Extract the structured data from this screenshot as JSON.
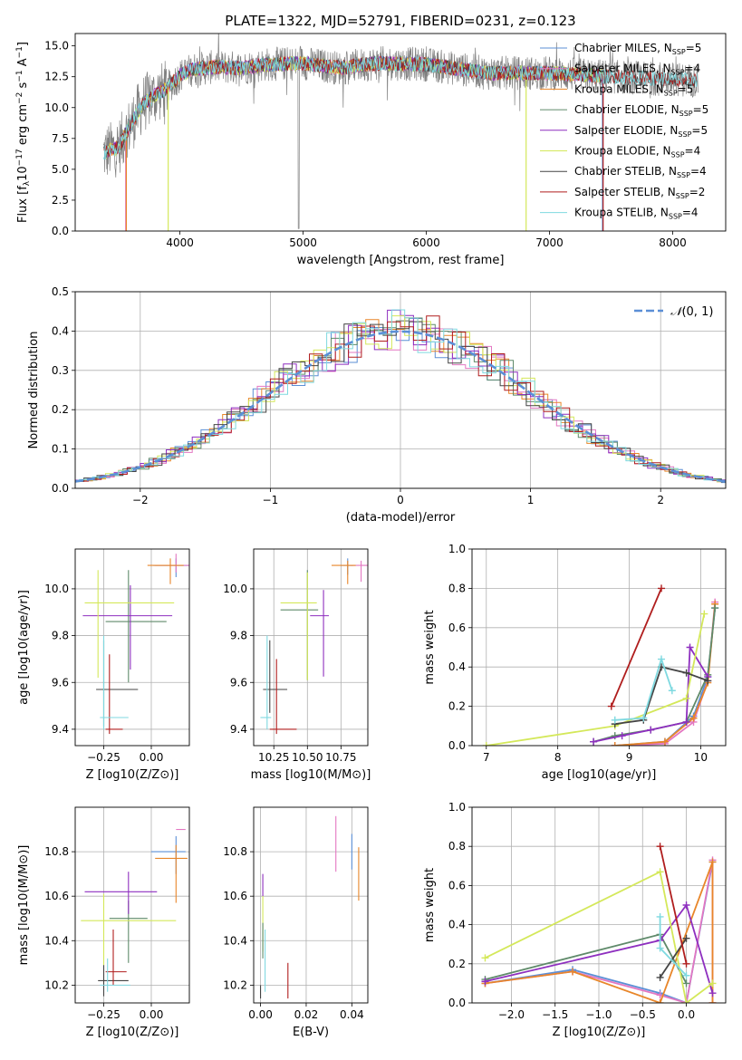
{
  "figure_title": "PLATE=1322, MJD=52791, FIBERID=0231, z=0.123",
  "colors": {
    "Chabrier MILES": "#5b8fd6",
    "Salpeter MILES": "#e377c2",
    "Kroupa MILES": "#e8862a",
    "Chabrier ELODIE": "#5f8a6a",
    "Salpeter ELODIE": "#8e2fbf",
    "Kroupa ELODIE": "#d4e85a",
    "Chabrier STELIB": "#444444",
    "Salpeter STELIB": "#b01e1e",
    "Kroupa STELIB": "#7fd9e0",
    "data": "#808080",
    "normal": "#5b8fd6",
    "grid": "#b0b0b0"
  },
  "chart_data": [
    {
      "id": "spectrum",
      "type": "line",
      "title": "PLATE=1322, MJD=52791, FIBERID=0231, z=0.123",
      "xlabel": "wavelength [Angstrom, rest frame]",
      "ylabel": "Flux [f_λ 10^-17 erg cm^-2 s^-1 A^-1]",
      "xlim": [
        3150,
        8430
      ],
      "ylim": [
        0,
        16
      ],
      "xticks": [
        4000,
        5000,
        6000,
        7000,
        8000
      ],
      "yticks": [
        0.0,
        2.5,
        5.0,
        7.5,
        10.0,
        12.5,
        15.0
      ],
      "grid": false,
      "legend_position": "upper-right",
      "legend": [
        {
          "base": "Chabrier MILES, N",
          "sub": "SSP",
          "tail": "=5"
        },
        {
          "base": "Salpeter MILES, N",
          "sub": "SSP",
          "tail": "=4"
        },
        {
          "base": "Kroupa MILES, N",
          "sub": "SSP",
          "tail": "=5"
        },
        {
          "base": "Chabrier ELODIE, N",
          "sub": "SSP",
          "tail": "=5"
        },
        {
          "base": "Salpeter ELODIE, N",
          "sub": "SSP",
          "tail": "=5"
        },
        {
          "base": "Kroupa ELODIE, N",
          "sub": "SSP",
          "tail": "=4"
        },
        {
          "base": "Chabrier STELIB, N",
          "sub": "SSP",
          "tail": "=4"
        },
        {
          "base": "Salpeter STELIB, N",
          "sub": "SSP",
          "tail": "=2"
        },
        {
          "base": "Kroupa STELIB, N",
          "sub": "SSP",
          "tail": "=4"
        }
      ],
      "continuum": {
        "x": [
          3380,
          3500,
          3600,
          3700,
          3800,
          3900,
          4000,
          4100,
          4300,
          4500,
          4700,
          5000,
          5300,
          5600,
          6000,
          6500,
          7000,
          7500,
          8000,
          8200
        ],
        "y": [
          6.3,
          6.8,
          8.6,
          10.3,
          11.0,
          11.6,
          12.6,
          13.1,
          13.3,
          13.2,
          13.5,
          13.6,
          13.2,
          13.6,
          13.5,
          12.8,
          12.8,
          12.5,
          12.3,
          12.2
        ]
      }
    },
    {
      "id": "residuals",
      "type": "histogram",
      "xlabel": "(data-model)/error",
      "ylabel": "Normed distribution",
      "xlim": [
        -2.5,
        2.5
      ],
      "ylim": [
        0,
        0.5
      ],
      "xticks": [
        -2,
        -1,
        0,
        1,
        2
      ],
      "yticks": [
        0.0,
        0.1,
        0.2,
        0.3,
        0.4,
        0.5
      ],
      "grid": true,
      "legend_position": "upper-right",
      "legend": [
        {
          "name": "N(0,1)",
          "style": "dashed"
        }
      ],
      "bin_width": 0.1
    },
    {
      "id": "age_vs_Z",
      "type": "errorbar",
      "xlabel": "Z [log10(Z/Z⊙)]",
      "ylabel": "age  [log10(age/yr)]",
      "xlim": [
        -0.4,
        0.2
      ],
      "ylim": [
        9.33,
        10.17
      ],
      "xticks": [
        -0.25,
        0.0
      ],
      "yticks": [
        9.4,
        9.6,
        9.8,
        10.0
      ],
      "grid": true
    },
    {
      "id": "age_vs_mass",
      "type": "errorbar",
      "xlabel": "mass [log10(M/M⊙)]",
      "xlim": [
        10.1,
        10.95
      ],
      "ylim": [
        9.33,
        10.17
      ],
      "xticks": [
        10.25,
        10.5,
        10.75
      ],
      "yticks": [
        9.4,
        9.6,
        9.8,
        10.0
      ],
      "grid": true
    },
    {
      "id": "mw_vs_age",
      "type": "line",
      "xlabel": "age  [log10(age/yr)]",
      "ylabel": "mass weight",
      "xlim": [
        6.8,
        10.35
      ],
      "ylim": [
        0,
        1
      ],
      "xticks": [
        7,
        8,
        9,
        10
      ],
      "yticks": [
        0.0,
        0.2,
        0.4,
        0.6,
        0.8,
        1.0
      ],
      "grid": true,
      "series": [
        {
          "model": "Chabrier MILES",
          "x": [
            8.8,
            9.5,
            9.9,
            10.1,
            10.2
          ],
          "y": [
            0.0,
            0.02,
            0.15,
            0.35,
            0.7
          ]
        },
        {
          "model": "Salpeter MILES",
          "x": [
            8.8,
            9.5,
            9.9,
            10.1,
            10.2
          ],
          "y": [
            0.0,
            0.01,
            0.12,
            0.33,
            0.73
          ]
        },
        {
          "model": "Kroupa MILES",
          "x": [
            8.8,
            9.5,
            9.9,
            10.1,
            10.2
          ],
          "y": [
            0.0,
            0.02,
            0.14,
            0.32,
            0.72
          ]
        },
        {
          "model": "Chabrier ELODIE",
          "x": [
            8.5,
            8.8,
            9.3,
            9.8,
            10.1,
            10.2
          ],
          "y": [
            0.02,
            0.05,
            0.08,
            0.12,
            0.36,
            0.7
          ]
        },
        {
          "model": "Salpeter ELODIE",
          "x": [
            8.5,
            8.9,
            9.3,
            9.8,
            9.85,
            10.1
          ],
          "y": [
            0.02,
            0.05,
            0.08,
            0.12,
            0.5,
            0.35
          ]
        },
        {
          "model": "Kroupa ELODIE",
          "x": [
            7.0,
            8.8,
            9.8,
            10.05
          ],
          "y": [
            0.0,
            0.1,
            0.24,
            0.67
          ]
        },
        {
          "model": "Chabrier STELIB",
          "x": [
            8.8,
            9.2,
            9.45,
            9.8,
            10.1
          ],
          "y": [
            0.11,
            0.13,
            0.4,
            0.37,
            0.33
          ]
        },
        {
          "model": "Salpeter STELIB",
          "x": [
            8.75,
            9.45
          ],
          "y": [
            0.2,
            0.8
          ]
        },
        {
          "model": "Kroupa STELIB",
          "x": [
            8.8,
            9.2,
            9.45,
            9.6
          ],
          "y": [
            0.13,
            0.14,
            0.44,
            0.28
          ]
        }
      ]
    },
    {
      "id": "mass_vs_Z",
      "type": "errorbar",
      "xlabel": "Z [log10(Z/Z⊙)]",
      "ylabel": "mass [log10(M/M⊙)]",
      "xlim": [
        -0.4,
        0.2
      ],
      "ylim": [
        10.12,
        11.0
      ],
      "xticks": [
        -0.25,
        0.0
      ],
      "yticks": [
        10.2,
        10.4,
        10.6,
        10.8
      ],
      "grid": true
    },
    {
      "id": "mass_vs_EBV",
      "type": "errorbar",
      "xlabel": "E(B-V)",
      "xlim": [
        -0.003,
        0.047
      ],
      "ylim": [
        10.12,
        11.0
      ],
      "xticks": [
        0.0,
        0.02,
        0.04
      ],
      "xtick_labels": [
        "0.00",
        "0.02",
        "0.04"
      ],
      "yticks": [
        10.2,
        10.4,
        10.6,
        10.8
      ],
      "grid": true
    },
    {
      "id": "mw_vs_Z",
      "type": "line",
      "xlabel": "Z [log10(Z/Z⊙)]",
      "ylabel": "mass weight",
      "xlim": [
        -2.45,
        0.45
      ],
      "ylim": [
        0,
        1
      ],
      "xticks": [
        -2.0,
        -1.5,
        -1.0,
        -0.5,
        0.0
      ],
      "yticks": [
        0.0,
        0.2,
        0.4,
        0.6,
        0.8,
        1.0
      ],
      "grid": true,
      "series": [
        {
          "model": "Chabrier MILES",
          "x": [
            -2.3,
            -1.3,
            -0.3,
            0.0,
            0.3
          ],
          "y": [
            0.1,
            0.17,
            0.05,
            0.0,
            0.72
          ]
        },
        {
          "model": "Salpeter MILES",
          "x": [
            -2.3,
            -1.3,
            -0.3,
            0.0,
            0.3,
            0.3
          ],
          "y": [
            0.1,
            0.16,
            0.04,
            0.0,
            0.73,
            0.0
          ]
        },
        {
          "model": "Kroupa MILES",
          "x": [
            -2.3,
            -1.3,
            -0.3,
            0.3,
            0.3
          ],
          "y": [
            0.1,
            0.16,
            0.0,
            0.72,
            0.0
          ]
        },
        {
          "model": "Chabrier ELODIE",
          "x": [
            -2.3,
            -0.3,
            0.0
          ],
          "y": [
            0.12,
            0.35,
            0.1
          ]
        },
        {
          "model": "Salpeter ELODIE",
          "x": [
            -2.3,
            -0.3,
            0.0,
            0.3
          ],
          "y": [
            0.11,
            0.32,
            0.5,
            0.05
          ]
        },
        {
          "model": "Kroupa ELODIE",
          "x": [
            -2.3,
            -0.3,
            0.0,
            0.3
          ],
          "y": [
            0.23,
            0.67,
            0.0,
            0.1
          ]
        },
        {
          "model": "Chabrier STELIB",
          "x": [
            -0.3,
            0.0
          ],
          "y": [
            0.13,
            0.33
          ]
        },
        {
          "model": "Salpeter STELIB",
          "x": [
            -0.3,
            0.0
          ],
          "y": [
            0.8,
            0.2
          ]
        },
        {
          "model": "Kroupa STELIB",
          "x": [
            -0.3,
            -0.3,
            0.0
          ],
          "y": [
            0.44,
            0.28,
            0.14
          ]
        }
      ]
    }
  ]
}
